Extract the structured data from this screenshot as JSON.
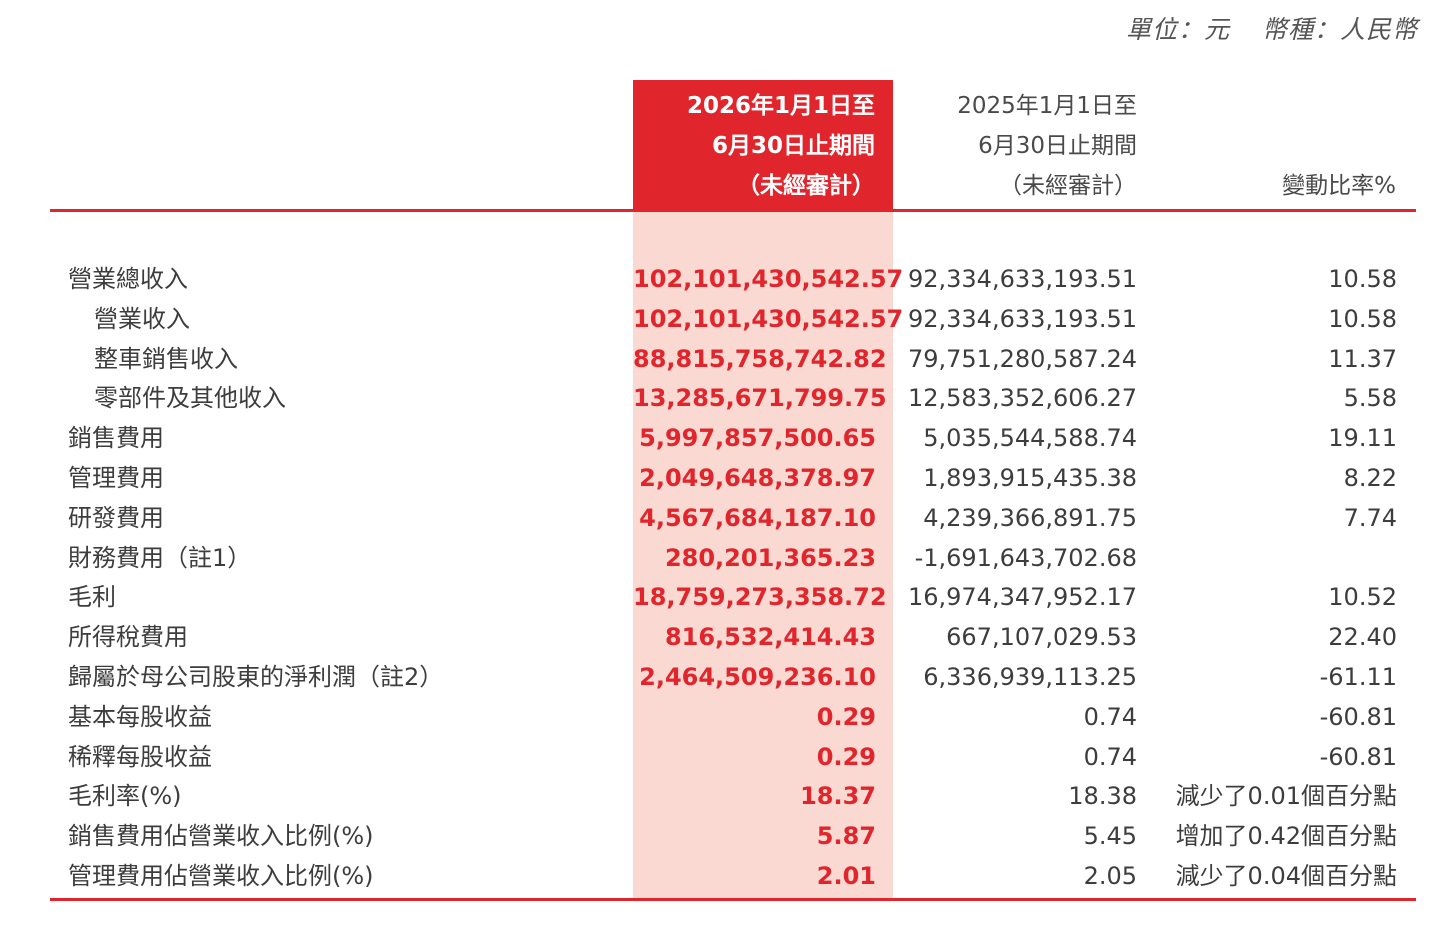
{
  "unit_line": {
    "unit": "單位：元",
    "currency": "幣種：人民幣"
  },
  "header": {
    "current_period": [
      "2026年1月1日至",
      "6月30日止期間",
      "（未經審計）"
    ],
    "prior_period": [
      "2025年1月1日至",
      "6月30日止期間",
      "（未經審計）"
    ],
    "change": "變動比率%"
  },
  "colors": {
    "accent": "#e0262c",
    "highlight": "#f9d9d2"
  },
  "rows": [
    {
      "label": "營業總收入",
      "indent": false,
      "current": "102,101,430,542.57",
      "prior": "92,334,633,193.51",
      "change": "10.58"
    },
    {
      "label": "營業收入",
      "indent": true,
      "current": "102,101,430,542.57",
      "prior": "92,334,633,193.51",
      "change": "10.58"
    },
    {
      "label": "整車銷售收入",
      "indent": true,
      "current": "88,815,758,742.82",
      "prior": "79,751,280,587.24",
      "change": "11.37"
    },
    {
      "label": "零部件及其他收入",
      "indent": true,
      "current": "13,285,671,799.75",
      "prior": "12,583,352,606.27",
      "change": "5.58"
    },
    {
      "label": "銷售費用",
      "indent": false,
      "current": "5,997,857,500.65",
      "prior": "5,035,544,588.74",
      "change": "19.11"
    },
    {
      "label": "管理費用",
      "indent": false,
      "current": "2,049,648,378.97",
      "prior": "1,893,915,435.38",
      "change": "8.22"
    },
    {
      "label": "研發費用",
      "indent": false,
      "current": "4,567,684,187.10",
      "prior": "4,239,366,891.75",
      "change": "7.74"
    },
    {
      "label": "財務費用（註1）",
      "indent": false,
      "current": "280,201,365.23",
      "prior": "-1,691,643,702.68",
      "change": ""
    },
    {
      "label": "毛利",
      "indent": false,
      "current": "18,759,273,358.72",
      "prior": "16,974,347,952.17",
      "change": "10.52"
    },
    {
      "label": "所得稅費用",
      "indent": false,
      "current": "816,532,414.43",
      "prior": "667,107,029.53",
      "change": "22.40"
    },
    {
      "label": "歸屬於母公司股東的淨利潤（註2）",
      "indent": false,
      "current": "2,464,509,236.10",
      "prior": "6,336,939,113.25",
      "change": "-61.11"
    },
    {
      "label": "基本每股收益",
      "indent": false,
      "current": "0.29",
      "prior": "0.74",
      "change": "-60.81"
    },
    {
      "label": "稀釋每股收益",
      "indent": false,
      "current": "0.29",
      "prior": "0.74",
      "change": "-60.81"
    },
    {
      "label": "毛利率(%)",
      "indent": false,
      "current": "18.37",
      "prior": "18.38",
      "change": "減少了0.01個百分點"
    },
    {
      "label": "銷售費用佔營業收入比例(%)",
      "indent": false,
      "current": "5.87",
      "prior": "5.45",
      "change": "增加了0.42個百分點"
    },
    {
      "label": "管理費用佔營業收入比例(%)",
      "indent": false,
      "current": "2.01",
      "prior": "2.05",
      "change": "減少了0.04個百分點"
    }
  ]
}
